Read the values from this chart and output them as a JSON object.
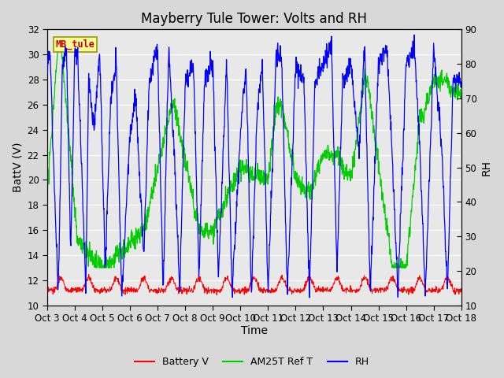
{
  "title": "Mayberry Tule Tower: Volts and RH",
  "xlabel": "Time",
  "ylabel_left": "BattV (V)",
  "ylabel_right": "RH",
  "ylim_left": [
    10,
    32
  ],
  "ylim_right": [
    10,
    90
  ],
  "yticks_left": [
    10,
    12,
    14,
    16,
    18,
    20,
    22,
    24,
    26,
    28,
    30,
    32
  ],
  "yticks_right": [
    10,
    20,
    30,
    40,
    50,
    60,
    70,
    80,
    90
  ],
  "xtick_labels": [
    "Oct 3",
    "Oct 4",
    "Oct 5",
    "Oct 6",
    "Oct 7",
    "Oct 8",
    "Oct 9",
    "Oct 10",
    "Oct 11",
    "Oct 12",
    "Oct 13",
    "Oct 14",
    "Oct 15",
    "Oct 16",
    "Oct 17",
    "Oct 18"
  ],
  "background_color": "#d8d8d8",
  "plot_bg_color": "#e8e8e8",
  "grid_color": "#ffffff",
  "annotation_box": {
    "text": "MB_tule",
    "bg": "#ffff99",
    "border": "#999900",
    "text_color": "#cc0000"
  },
  "title_fontsize": 12,
  "axis_fontsize": 10,
  "tick_fontsize": 8.5
}
